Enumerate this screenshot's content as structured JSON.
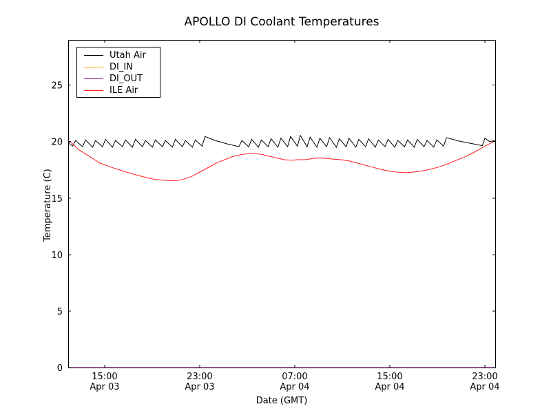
{
  "figure": {
    "background": "#ffffff",
    "axis_color": "#000000"
  },
  "chart_data": {
    "type": "line",
    "title": "APOLLO DI Coolant Temperatures",
    "xlabel": "Date (GMT)",
    "ylabel": "Temperature (C)",
    "x_unit": "hours since Apr 03 00:00 GMT",
    "xlim": [
      11.93,
      47.87
    ],
    "ylim": [
      0,
      29
    ],
    "grid": false,
    "tick_direction": "in",
    "y_ticks": [
      0,
      5,
      10,
      15,
      20,
      25
    ],
    "x_ticks": [
      {
        "t": 15,
        "time": "15:00",
        "date": "Apr 03"
      },
      {
        "t": 23,
        "time": "23:00",
        "date": "Apr 03"
      },
      {
        "t": 31,
        "time": "07:00",
        "date": "Apr 04"
      },
      {
        "t": 39,
        "time": "15:00",
        "date": "Apr 04"
      },
      {
        "t": 47,
        "time": "23:00",
        "date": "Apr 04"
      }
    ],
    "legend": {
      "position": "upper-left"
    },
    "series": [
      {
        "name": "Utah Air",
        "color": "#000000",
        "points": [
          [
            11.93,
            20.15
          ],
          [
            12.05,
            19.8
          ],
          [
            12.3,
            19.6
          ],
          [
            12.55,
            20.1
          ],
          [
            13.14,
            19.55
          ],
          [
            13.39,
            20.15
          ],
          [
            13.98,
            19.5
          ],
          [
            14.23,
            20.1
          ],
          [
            14.82,
            19.55
          ],
          [
            15.07,
            20.2
          ],
          [
            15.66,
            19.5
          ],
          [
            15.91,
            20.1
          ],
          [
            16.5,
            19.55
          ],
          [
            16.75,
            20.15
          ],
          [
            17.34,
            19.5
          ],
          [
            17.59,
            20.2
          ],
          [
            18.18,
            19.55
          ],
          [
            18.43,
            20.1
          ],
          [
            19.02,
            19.5
          ],
          [
            19.27,
            20.15
          ],
          [
            19.86,
            19.55
          ],
          [
            20.11,
            20.1
          ],
          [
            20.7,
            19.5
          ],
          [
            20.95,
            20.2
          ],
          [
            21.54,
            19.55
          ],
          [
            21.79,
            20.1
          ],
          [
            22.38,
            19.5
          ],
          [
            22.63,
            20.15
          ],
          [
            23.2,
            19.6
          ],
          [
            23.45,
            20.45
          ],
          [
            24.3,
            20.1
          ],
          [
            25.3,
            19.8
          ],
          [
            26.3,
            19.55
          ],
          [
            26.55,
            20.1
          ],
          [
            27.12,
            19.55
          ],
          [
            27.37,
            20.2
          ],
          [
            27.94,
            19.5
          ],
          [
            28.19,
            20.15
          ],
          [
            28.76,
            19.55
          ],
          [
            29.01,
            20.25
          ],
          [
            29.58,
            19.5
          ],
          [
            29.83,
            20.3
          ],
          [
            30.4,
            19.55
          ],
          [
            30.65,
            20.45
          ],
          [
            31.22,
            19.6
          ],
          [
            31.47,
            20.55
          ],
          [
            32.04,
            19.55
          ],
          [
            32.29,
            20.4
          ],
          [
            32.86,
            19.5
          ],
          [
            33.11,
            20.3
          ],
          [
            33.68,
            19.55
          ],
          [
            33.93,
            20.35
          ],
          [
            34.5,
            19.5
          ],
          [
            34.75,
            20.25
          ],
          [
            35.32,
            19.55
          ],
          [
            35.57,
            20.3
          ],
          [
            36.14,
            19.5
          ],
          [
            36.39,
            20.2
          ],
          [
            36.96,
            19.55
          ],
          [
            37.21,
            20.25
          ],
          [
            37.78,
            19.5
          ],
          [
            38.03,
            20.15
          ],
          [
            38.6,
            19.55
          ],
          [
            38.85,
            20.2
          ],
          [
            39.42,
            19.5
          ],
          [
            39.67,
            20.1
          ],
          [
            40.24,
            19.55
          ],
          [
            40.49,
            20.15
          ],
          [
            41.06,
            19.5
          ],
          [
            41.31,
            20.2
          ],
          [
            41.88,
            19.55
          ],
          [
            42.13,
            20.1
          ],
          [
            42.7,
            19.5
          ],
          [
            42.95,
            20.15
          ],
          [
            43.52,
            19.6
          ],
          [
            43.77,
            20.35
          ],
          [
            44.8,
            20.05
          ],
          [
            45.8,
            19.85
          ],
          [
            46.5,
            19.7
          ],
          [
            46.8,
            19.65
          ],
          [
            47.0,
            20.3
          ],
          [
            47.4,
            20.0
          ],
          [
            47.87,
            20.1
          ]
        ]
      },
      {
        "name": "DI_IN",
        "color": "#ffa500",
        "points": [
          [
            11.93,
            0.0
          ],
          [
            47.87,
            0.0
          ]
        ]
      },
      {
        "name": "DI_OUT",
        "color": "#800080",
        "points": [
          [
            11.93,
            0.0
          ],
          [
            47.87,
            0.0
          ]
        ]
      },
      {
        "name": "ILE Air",
        "color": "#ff1a1a",
        "points": [
          [
            11.93,
            20.1
          ],
          [
            12.2,
            19.9
          ],
          [
            12.8,
            19.3
          ],
          [
            13.7,
            18.7
          ],
          [
            14.6,
            18.1
          ],
          [
            15.5,
            17.75
          ],
          [
            16.4,
            17.45
          ],
          [
            17.3,
            17.15
          ],
          [
            18.2,
            16.9
          ],
          [
            19.0,
            16.7
          ],
          [
            19.7,
            16.6
          ],
          [
            20.4,
            16.55
          ],
          [
            21.0,
            16.55
          ],
          [
            21.6,
            16.65
          ],
          [
            22.3,
            16.9
          ],
          [
            23.0,
            17.3
          ],
          [
            23.7,
            17.7
          ],
          [
            24.4,
            18.1
          ],
          [
            25.1,
            18.4
          ],
          [
            25.8,
            18.7
          ],
          [
            26.5,
            18.85
          ],
          [
            27.1,
            18.95
          ],
          [
            27.7,
            18.95
          ],
          [
            28.3,
            18.85
          ],
          [
            28.9,
            18.7
          ],
          [
            29.5,
            18.55
          ],
          [
            30.1,
            18.4
          ],
          [
            30.7,
            18.35
          ],
          [
            31.3,
            18.4
          ],
          [
            31.9,
            18.4
          ],
          [
            32.5,
            18.5
          ],
          [
            33.1,
            18.55
          ],
          [
            33.7,
            18.5
          ],
          [
            34.3,
            18.45
          ],
          [
            34.9,
            18.4
          ],
          [
            35.5,
            18.3
          ],
          [
            36.1,
            18.15
          ],
          [
            36.8,
            17.95
          ],
          [
            37.5,
            17.75
          ],
          [
            38.2,
            17.55
          ],
          [
            38.9,
            17.4
          ],
          [
            39.6,
            17.3
          ],
          [
            40.3,
            17.25
          ],
          [
            41.0,
            17.3
          ],
          [
            41.7,
            17.4
          ],
          [
            42.4,
            17.55
          ],
          [
            43.1,
            17.75
          ],
          [
            43.8,
            18.0
          ],
          [
            44.5,
            18.3
          ],
          [
            45.2,
            18.6
          ],
          [
            45.9,
            18.95
          ],
          [
            46.6,
            19.35
          ],
          [
            47.2,
            19.7
          ],
          [
            47.87,
            20.05
          ]
        ]
      }
    ]
  }
}
